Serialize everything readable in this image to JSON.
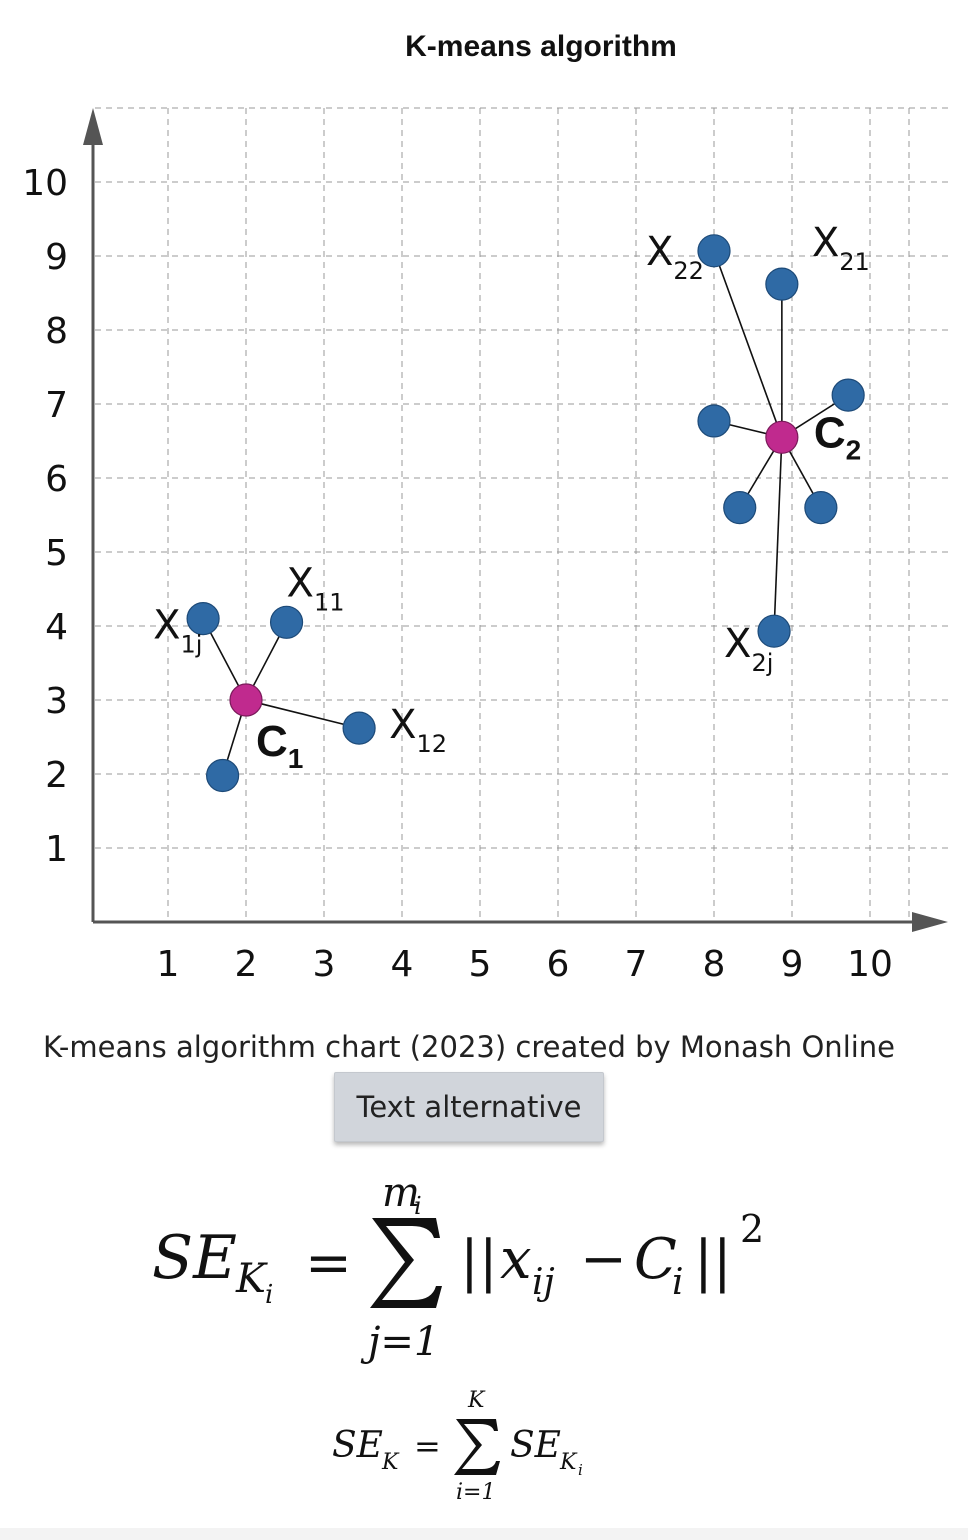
{
  "chart_data": {
    "type": "scatter",
    "title": "K-means algorithm",
    "xlabel": "",
    "ylabel": "",
    "xlim": [
      0,
      11
    ],
    "ylim": [
      0,
      11
    ],
    "x_ticks": [
      1,
      2,
      3,
      4,
      5,
      6,
      7,
      8,
      9,
      10
    ],
    "y_ticks": [
      1,
      2,
      3,
      4,
      5,
      6,
      7,
      8,
      9,
      10
    ],
    "grid": true,
    "colors": {
      "point": "#2f6aa5",
      "centroid": "#c02a8e",
      "line": "#111111",
      "grid": "#999999"
    },
    "clusters": [
      {
        "centroid": {
          "label_main": "C",
          "label_sub": "1",
          "x": 2.0,
          "y": 3.0
        },
        "points": [
          {
            "x": 2.52,
            "y": 4.05,
            "label_main": "X",
            "label_sub": "11"
          },
          {
            "x": 3.45,
            "y": 2.62,
            "label_main": "X",
            "label_sub": "12"
          },
          {
            "x": 1.45,
            "y": 4.1,
            "label_main": "X",
            "label_sub": "1j"
          },
          {
            "x": 1.7,
            "y": 1.98,
            "label_main": "",
            "label_sub": ""
          }
        ]
      },
      {
        "centroid": {
          "label_main": "C",
          "label_sub": "2",
          "x": 8.87,
          "y": 6.55
        },
        "points": [
          {
            "x": 8.87,
            "y": 8.62,
            "label_main": "X",
            "label_sub": "21"
          },
          {
            "x": 8.0,
            "y": 9.07,
            "label_main": "X",
            "label_sub": "22"
          },
          {
            "x": 9.72,
            "y": 7.12,
            "label_main": "",
            "label_sub": ""
          },
          {
            "x": 8.0,
            "y": 6.77,
            "label_main": "",
            "label_sub": ""
          },
          {
            "x": 8.33,
            "y": 5.6,
            "label_main": "",
            "label_sub": ""
          },
          {
            "x": 9.37,
            "y": 5.6,
            "label_main": "",
            "label_sub": ""
          },
          {
            "x": 8.77,
            "y": 3.93,
            "label_main": "X",
            "label_sub": "2j"
          }
        ]
      }
    ]
  },
  "caption": "K-means algorithm chart (2023) created by Monash Online",
  "button": {
    "label": "Text alternative"
  },
  "formula_1": {
    "lhs_main": "SE",
    "lhs_sub_main": "K",
    "lhs_sub_sub": "i",
    "equals": "=",
    "sum_upper_main": "m",
    "sum_upper_sub": "i",
    "sum_lower": "j=1",
    "bars_open": "||",
    "x_main": "x",
    "x_sub": "ij",
    "minus": "−",
    "c_main": "C",
    "c_sub": "i",
    "bars_close": "||",
    "power": "2"
  },
  "formula_2": {
    "lhs_main": "SE",
    "lhs_sub": "K",
    "equals": "=",
    "sum_upper": "K",
    "sum_lower": "i=1",
    "rhs_main": "SE",
    "rhs_sub_main": "K",
    "rhs_sub_sub": "i"
  }
}
